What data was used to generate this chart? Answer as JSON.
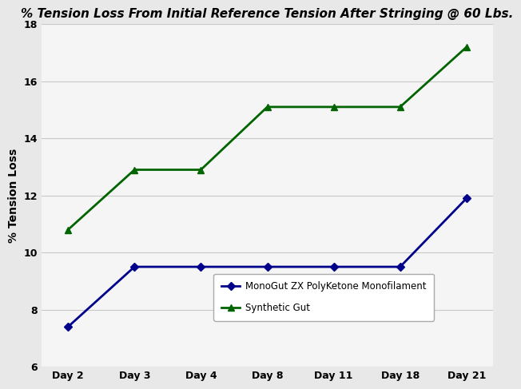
{
  "title": "% Tension Loss From Initial Reference Tension After Stringing @ 60 Lbs.",
  "ylabel": "% Tension Loss",
  "x_labels": [
    "Day 2",
    "Day 3",
    "Day 4",
    "Day 8",
    "Day 11",
    "Day 18",
    "Day 21"
  ],
  "series": [
    {
      "label": "MonoGut ZX PolyKetone Monofilament",
      "color": "#00008B",
      "marker": "D",
      "markersize": 5,
      "linewidth": 2.0,
      "values": [
        7.4,
        9.5,
        9.5,
        9.5,
        9.5,
        9.5,
        11.9
      ]
    },
    {
      "label": "Synthetic Gut",
      "color": "#006400",
      "marker": "^",
      "markersize": 6,
      "linewidth": 2.0,
      "values": [
        10.8,
        12.9,
        12.9,
        15.1,
        15.1,
        15.1,
        17.2
      ]
    }
  ],
  "ylim": [
    6,
    18
  ],
  "yticks": [
    6,
    8,
    10,
    12,
    14,
    16,
    18
  ],
  "background_color": "#e8e8e8",
  "plot_bg_color": "#f5f5f5",
  "grid_color": "#c8c8c8",
  "title_fontsize": 11,
  "label_fontsize": 10,
  "tick_fontsize": 9,
  "legend_fontsize": 8.5
}
